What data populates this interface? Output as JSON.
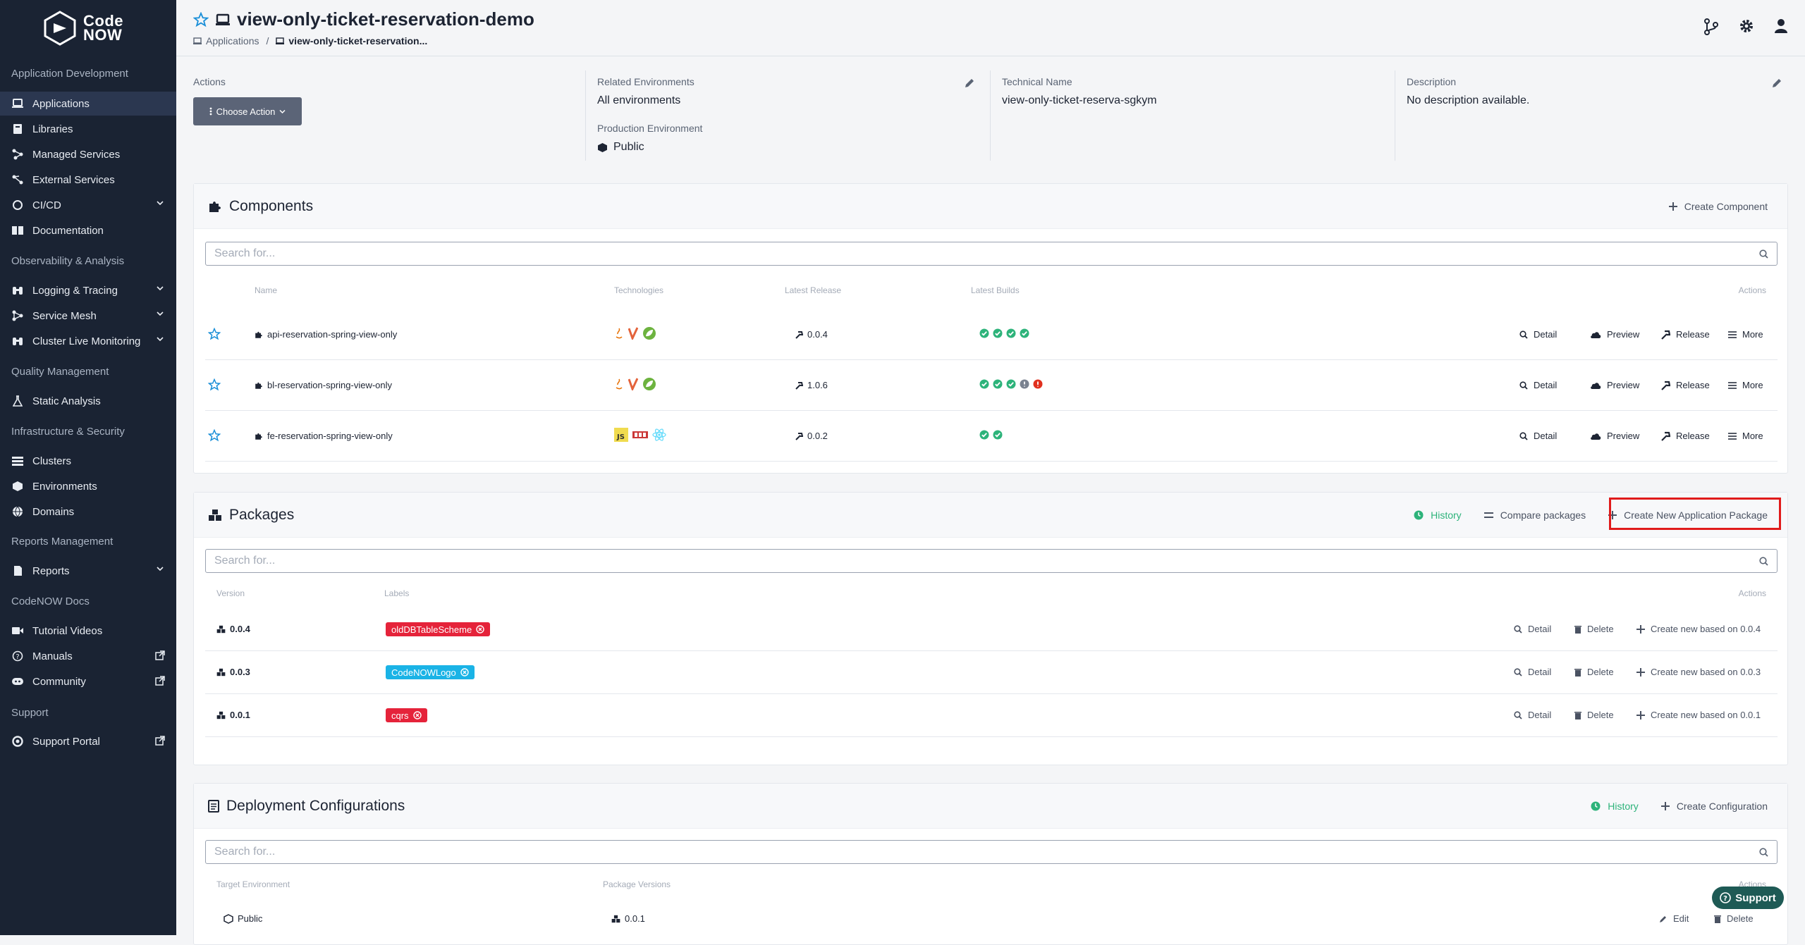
{
  "brand": {
    "line1": "Code",
    "line2": "NOW"
  },
  "sidebar": {
    "sections": [
      {
        "label": "Application Development"
      },
      {
        "label": "Observability & Analysis"
      },
      {
        "label": "Quality Management"
      },
      {
        "label": "Infrastructure & Security"
      },
      {
        "label": "Reports Management"
      },
      {
        "label": "CodeNOW Docs"
      },
      {
        "label": "Support"
      }
    ],
    "items": [
      {
        "label": "Applications",
        "icon": "laptop-icon",
        "active": true
      },
      {
        "label": "Libraries",
        "icon": "book-icon"
      },
      {
        "label": "Managed Services",
        "icon": "network-icon"
      },
      {
        "label": "External Services",
        "icon": "external-network-icon"
      },
      {
        "label": "CI/CD",
        "icon": "cycle-icon"
      },
      {
        "label": "Documentation",
        "icon": "open-book-icon"
      },
      {
        "label": "Logging & Tracing",
        "icon": "binoculars-icon"
      },
      {
        "label": "Service Mesh",
        "icon": "mesh-icon"
      },
      {
        "label": "Cluster Live Monitoring",
        "icon": "binoculars-icon"
      },
      {
        "label": "Static Analysis",
        "icon": "flask-icon"
      },
      {
        "label": "Clusters",
        "icon": "list-icon"
      },
      {
        "label": "Environments",
        "icon": "cube-icon"
      },
      {
        "label": "Domains",
        "icon": "globe-icon"
      },
      {
        "label": "Reports",
        "icon": "file-icon"
      },
      {
        "label": "Tutorial Videos",
        "icon": "video-icon"
      },
      {
        "label": "Manuals",
        "icon": "question-icon"
      },
      {
        "label": "Community",
        "icon": "discord-icon"
      },
      {
        "label": "Support Portal",
        "icon": "lifebuoy-icon"
      }
    ]
  },
  "header": {
    "title": "view-only-ticket-reservation-demo",
    "breadcrumb": {
      "root": "Applications",
      "separator": "/",
      "current": "view-only-ticket-reservation..."
    }
  },
  "info": {
    "actions_label": "Actions",
    "choose_action": "Choose Action",
    "related_env_label": "Related Environments",
    "related_env_value": "All environments",
    "prod_env_label": "Production Environment",
    "prod_env_value": "Public",
    "tech_name_label": "Technical Name",
    "tech_name_value": "view-only-ticket-reserva-sgkym",
    "description_label": "Description",
    "description_value": "No description available."
  },
  "components": {
    "title": "Components",
    "create_label": "Create Component",
    "search_placeholder": "Search for...",
    "columns": {
      "name": "Name",
      "technologies": "Technologies",
      "latest_release": "Latest Release",
      "latest_builds": "Latest Builds",
      "actions": "Actions"
    },
    "actions": {
      "detail": "Detail",
      "preview": "Preview",
      "release": "Release",
      "more": "More"
    },
    "rows": [
      {
        "name": "api-reservation-spring-view-only",
        "release": "0.0.4",
        "builds": [
          "success",
          "success",
          "success",
          "success"
        ],
        "tech": [
          "java",
          "maven",
          "spring"
        ]
      },
      {
        "name": "bl-reservation-spring-view-only",
        "release": "1.0.6",
        "builds": [
          "success",
          "success",
          "success",
          "neutral",
          "failed"
        ],
        "tech": [
          "java",
          "maven",
          "spring"
        ]
      },
      {
        "name": "fe-reservation-spring-view-only",
        "release": "0.0.2",
        "builds": [
          "success",
          "success"
        ],
        "tech": [
          "javascript",
          "npm",
          "react"
        ]
      }
    ]
  },
  "packages": {
    "title": "Packages",
    "history_label": "History",
    "compare_label": "Compare packages",
    "create_label": "Create New Application Package",
    "search_placeholder": "Search for...",
    "columns": {
      "version": "Version",
      "labels": "Labels",
      "actions": "Actions"
    },
    "actions": {
      "detail": "Detail",
      "delete": "Delete"
    },
    "rows": [
      {
        "version": "0.0.4",
        "label": "oldDBTableScheme",
        "label_color": "#e5233a",
        "create_new": "Create new based on 0.0.4"
      },
      {
        "version": "0.0.3",
        "label": "CodeNOWLogo",
        "label_color": "#1ab3e6",
        "create_new": "Create new based on 0.0.3"
      },
      {
        "version": "0.0.1",
        "label": "cqrs",
        "label_color": "#e5233a",
        "create_new": "Create new based on 0.0.1"
      }
    ]
  },
  "deployments": {
    "title": "Deployment Configurations",
    "history_label": "History",
    "create_label": "Create Configuration",
    "search_placeholder": "Search for...",
    "columns": {
      "target_env": "Target Environment",
      "package_versions": "Package Versions",
      "actions": "Actions"
    },
    "actions": {
      "edit": "Edit",
      "delete": "Delete"
    },
    "rows": [
      {
        "env": "Public",
        "version": "0.0.1"
      }
    ]
  },
  "support_button": "Support",
  "colors": {
    "sidebar": "#1a2333",
    "success": "#2db37a",
    "failed": "#e0301e",
    "highlight": "#e01b1b"
  }
}
